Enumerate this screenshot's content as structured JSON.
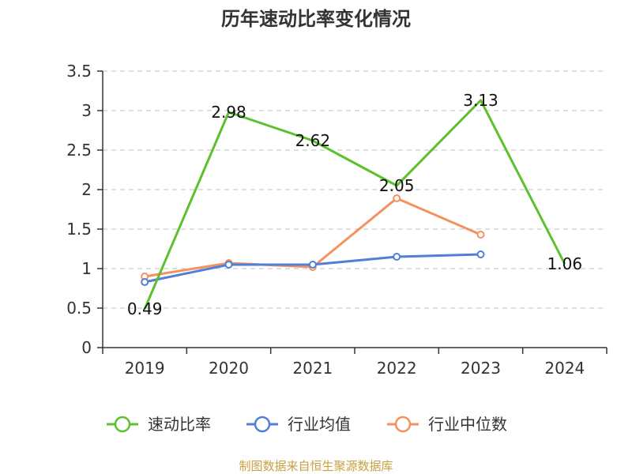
{
  "chart_data": {
    "type": "line",
    "title": "历年速动比率变化情况",
    "categories": [
      "2019",
      "2020",
      "2021",
      "2022",
      "2023",
      "2024"
    ],
    "ylim": [
      0,
      3.5
    ],
    "yticks": [
      "0",
      "0.5",
      "1",
      "1.5",
      "2",
      "2.5",
      "3",
      "3.5"
    ],
    "grid": true,
    "legend_position": "bottom",
    "series": [
      {
        "name": "速动比率",
        "color": "#5dc12f",
        "values": [
          0.49,
          2.98,
          2.62,
          2.05,
          3.13,
          1.06
        ],
        "labels": [
          "0.49",
          "2.98",
          "2.62",
          "2.05",
          "3.13",
          "1.06"
        ],
        "markers": false
      },
      {
        "name": "行业均值",
        "color": "#4f7fd6",
        "values": [
          0.83,
          1.05,
          1.05,
          1.15,
          1.18,
          null
        ],
        "markers": true
      },
      {
        "name": "行业中位数",
        "color": "#f4925e",
        "values": [
          0.9,
          1.07,
          1.02,
          1.89,
          1.43,
          null
        ],
        "markers": true
      }
    ]
  },
  "source_note": "制图数据来自恒生聚源数据库"
}
